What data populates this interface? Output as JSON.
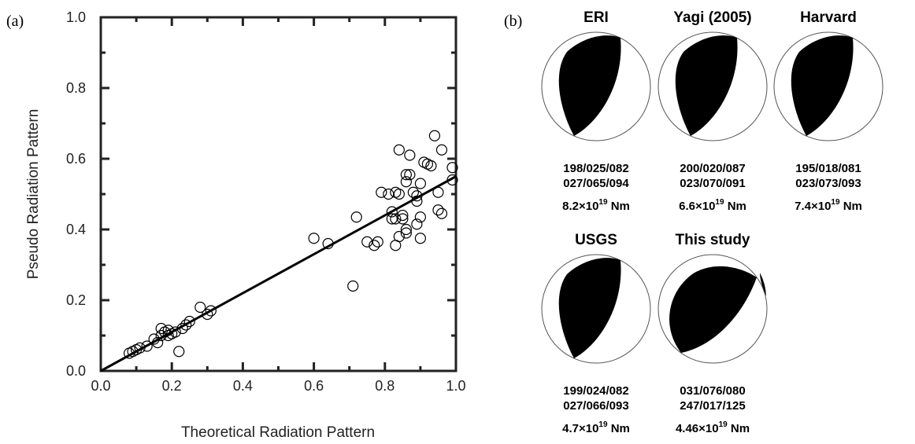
{
  "panel_a_label": "(a)",
  "panel_b_label": "(b)",
  "chart_data": {
    "type": "scatter",
    "xlabel": "Theoretical Radiation Pattern",
    "ylabel": "Pseudo Radiation Pattern",
    "xlim": [
      0,
      1
    ],
    "ylim": [
      0,
      1
    ],
    "xticks": [
      "0.0",
      "0.2",
      "0.4",
      "0.6",
      "0.8",
      "1.0"
    ],
    "yticks": [
      "0.0",
      "0.2",
      "0.4",
      "0.6",
      "0.8",
      "1.0"
    ],
    "grid": false,
    "fit_line": {
      "x": [
        0.0,
        1.0
      ],
      "y": [
        0.0,
        0.55
      ]
    },
    "points": [
      [
        0.08,
        0.05
      ],
      [
        0.09,
        0.055
      ],
      [
        0.1,
        0.06
      ],
      [
        0.11,
        0.065
      ],
      [
        0.13,
        0.07
      ],
      [
        0.15,
        0.09
      ],
      [
        0.16,
        0.08
      ],
      [
        0.17,
        0.1
      ],
      [
        0.17,
        0.12
      ],
      [
        0.18,
        0.11
      ],
      [
        0.19,
        0.1
      ],
      [
        0.19,
        0.115
      ],
      [
        0.2,
        0.105
      ],
      [
        0.21,
        0.11
      ],
      [
        0.22,
        0.055
      ],
      [
        0.23,
        0.12
      ],
      [
        0.24,
        0.13
      ],
      [
        0.25,
        0.14
      ],
      [
        0.28,
        0.18
      ],
      [
        0.3,
        0.16
      ],
      [
        0.31,
        0.17
      ],
      [
        0.6,
        0.375
      ],
      [
        0.64,
        0.36
      ],
      [
        0.71,
        0.24
      ],
      [
        0.72,
        0.435
      ],
      [
        0.75,
        0.365
      ],
      [
        0.77,
        0.355
      ],
      [
        0.78,
        0.365
      ],
      [
        0.79,
        0.505
      ],
      [
        0.81,
        0.5
      ],
      [
        0.82,
        0.45
      ],
      [
        0.82,
        0.43
      ],
      [
        0.83,
        0.355
      ],
      [
        0.83,
        0.43
      ],
      [
        0.83,
        0.505
      ],
      [
        0.84,
        0.625
      ],
      [
        0.84,
        0.5
      ],
      [
        0.84,
        0.38
      ],
      [
        0.85,
        0.44
      ],
      [
        0.85,
        0.43
      ],
      [
        0.86,
        0.4
      ],
      [
        0.86,
        0.39
      ],
      [
        0.86,
        0.555
      ],
      [
        0.86,
        0.535
      ],
      [
        0.87,
        0.61
      ],
      [
        0.87,
        0.555
      ],
      [
        0.88,
        0.505
      ],
      [
        0.89,
        0.415
      ],
      [
        0.89,
        0.48
      ],
      [
        0.89,
        0.495
      ],
      [
        0.9,
        0.375
      ],
      [
        0.9,
        0.435
      ],
      [
        0.9,
        0.53
      ],
      [
        0.91,
        0.59
      ],
      [
        0.92,
        0.585
      ],
      [
        0.93,
        0.58
      ],
      [
        0.94,
        0.665
      ],
      [
        0.95,
        0.505
      ],
      [
        0.95,
        0.455
      ],
      [
        0.96,
        0.445
      ],
      [
        0.96,
        0.625
      ],
      [
        0.99,
        0.575
      ],
      [
        0.99,
        0.54
      ]
    ]
  },
  "mechanisms": [
    {
      "title": "ERI",
      "line1": "198/025/082",
      "line2": "027/065/094",
      "moment_coef": "8.2×10",
      "moment_exp": "19",
      "moment_unit": " Nm",
      "variant": "a"
    },
    {
      "title": "Yagi (2005)",
      "line1": "200/020/087",
      "line2": "023/070/091",
      "moment_coef": "6.6×10",
      "moment_exp": "19",
      "moment_unit": " Nm",
      "variant": "a"
    },
    {
      "title": "Harvard",
      "line1": "195/018/081",
      "line2": "023/073/093",
      "moment_coef": "7.4×10",
      "moment_exp": "19",
      "moment_unit": " Nm",
      "variant": "a"
    },
    {
      "title": "USGS",
      "line1": "199/024/082",
      "line2": "027/066/093",
      "moment_coef": "4.7×10",
      "moment_exp": "19",
      "moment_unit": " Nm",
      "variant": "a"
    },
    {
      "title": "This study",
      "line1": "031/076/080",
      "line2": "247/017/125",
      "moment_coef": "4.46×10",
      "moment_exp": "19",
      "moment_unit": " Nm",
      "variant": "b"
    }
  ]
}
